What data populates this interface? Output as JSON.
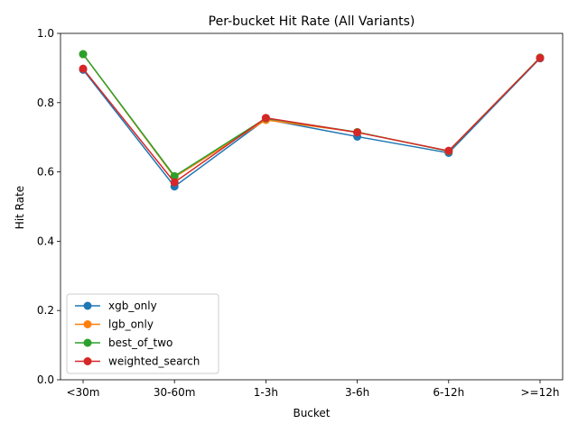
{
  "chart_data": {
    "type": "line",
    "title": "Per-bucket Hit Rate (All Variants)",
    "xlabel": "Bucket",
    "ylabel": "Hit Rate",
    "categories": [
      "<30m",
      "30-60m",
      "1-3h",
      "3-6h",
      "6-12h",
      ">=12h"
    ],
    "ylim": [
      0,
      1.0
    ],
    "yticks": [
      "0.0",
      "0.2",
      "0.4",
      "0.6",
      "0.8",
      "1.0"
    ],
    "grid": false,
    "legend_position": "lower-left",
    "series": [
      {
        "name": "xgb_only",
        "color": "#1f77b4",
        "values": [
          0.895,
          0.558,
          0.752,
          0.702,
          0.655,
          0.928
        ]
      },
      {
        "name": "lgb_only",
        "color": "#ff7f0e",
        "values": [
          0.94,
          0.585,
          0.75,
          0.715,
          0.66,
          0.93
        ]
      },
      {
        "name": "best_of_two",
        "color": "#2ca02c",
        "values": [
          0.94,
          0.588,
          0.755,
          0.715,
          0.66,
          0.93
        ]
      },
      {
        "name": "weighted_search",
        "color": "#d62728",
        "values": [
          0.898,
          0.57,
          0.756,
          0.714,
          0.661,
          0.929
        ]
      }
    ]
  }
}
